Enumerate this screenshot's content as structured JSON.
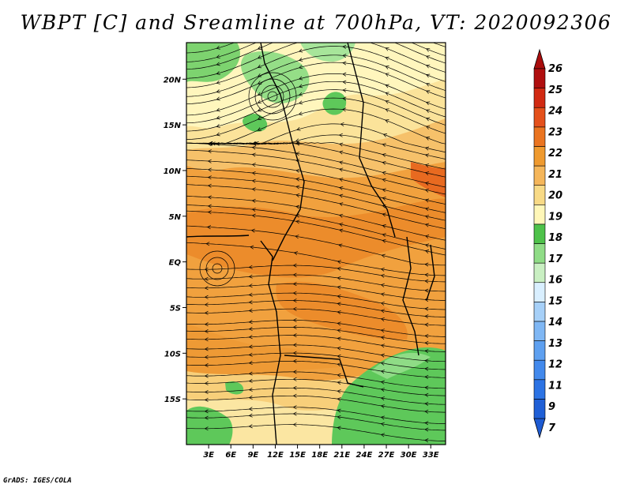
{
  "title": "WBPT [C] and Sreamline at 700hPa, VT: 2020092306",
  "credit": "GrADS: IGES/COLA",
  "map": {
    "lon_range": [
      0,
      35
    ],
    "lat_range": [
      -20,
      24
    ],
    "lat_ticks": [
      {
        "value": 20,
        "label": "20N"
      },
      {
        "value": 15,
        "label": "15N"
      },
      {
        "value": 10,
        "label": "10N"
      },
      {
        "value": 5,
        "label": "5N"
      },
      {
        "value": 0,
        "label": "EQ"
      },
      {
        "value": -5,
        "label": "5S"
      },
      {
        "value": -10,
        "label": "10S"
      },
      {
        "value": -15,
        "label": "15S"
      }
    ],
    "lon_ticks": [
      {
        "value": 3,
        "label": "3E"
      },
      {
        "value": 6,
        "label": "6E"
      },
      {
        "value": 9,
        "label": "9E"
      },
      {
        "value": 12,
        "label": "12E"
      },
      {
        "value": 15,
        "label": "15E"
      },
      {
        "value": 18,
        "label": "18E"
      },
      {
        "value": 21,
        "label": "21E"
      },
      {
        "value": 24,
        "label": "24E"
      },
      {
        "value": 27,
        "label": "27E"
      },
      {
        "value": 30,
        "label": "30E"
      },
      {
        "value": 33,
        "label": "33E"
      }
    ]
  },
  "colorbar": {
    "labels": [
      "7",
      "9",
      "11",
      "12",
      "13",
      "14",
      "15",
      "16",
      "17",
      "18",
      "19",
      "20",
      "21",
      "22",
      "23",
      "24",
      "25",
      "26"
    ],
    "colors": [
      "#1f5fd6",
      "#2c73e4",
      "#4289ec",
      "#5ea0f0",
      "#7fb7f4",
      "#a6d0f8",
      "#d9efff",
      "#c9efc2",
      "#8fdc86",
      "#4ec24a",
      "#fff7b8",
      "#f8da86",
      "#f5b65a",
      "#ef9a2f",
      "#ea7420",
      "#e4501b",
      "#d12a12",
      "#b00f0f"
    ],
    "low_color": "#1e5bd2",
    "high_color": "#a90d0d"
  }
}
